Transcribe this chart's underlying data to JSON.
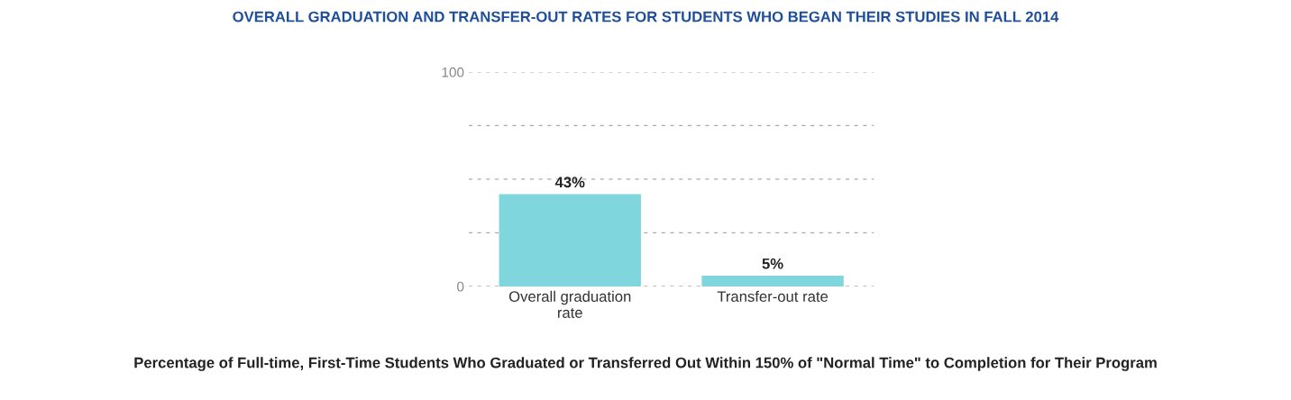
{
  "chart_data": {
    "type": "bar",
    "title": "OVERALL GRADUATION AND TRANSFER-OUT RATES FOR STUDENTS WHO BEGAN THEIR STUDIES IN FALL 2014",
    "categories": [
      "Overall graduation\nrate",
      "Transfer-out rate"
    ],
    "values": [
      43,
      5
    ],
    "color": "#7fd6dc",
    "ylim": [
      0,
      100
    ],
    "yticks": [
      0,
      {
        "value": 25,
        "label": null
      },
      {
        "value": 50,
        "label": null
      },
      {
        "value": 75,
        "label": null
      },
      100
    ],
    "grid": "y",
    "data_labels": true,
    "value_labels": [
      "43%",
      "5%"
    ],
    "annotations": [
      "Percentage of Full-time, First-Time Students Who Graduated or Transferred Out Within 150% of \"Normal Time\" to Completion for Their Program"
    ]
  }
}
